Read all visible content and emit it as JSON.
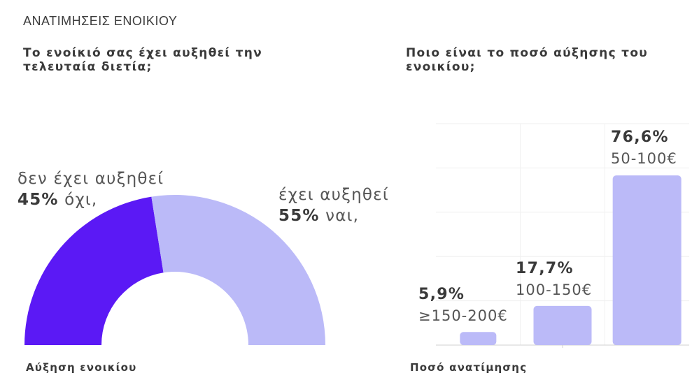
{
  "header": {
    "section_title": "ΑΝΑΤΙΜΗΣΕΙΣ ΕΝΟΙΚΙΟΥ"
  },
  "left_chart": {
    "title_line1": "Το ενοίκιό σας έχει αυξηθεί την",
    "title_line2": "τελευταία διετία;",
    "footer": "Αύξηση ενοικίου"
  },
  "right_chart": {
    "title_line1": "Ποιο είναι το ποσό αύξησης του",
    "title_line2": "ενοικίου;",
    "footer": "Ποσό ανατίμησης"
  },
  "chart_data": [
    {
      "type": "pie",
      "variant": "half-donut",
      "title": "Το ενοίκιό σας έχει αυξηθεί την τελευταία διετία;",
      "slices": [
        {
          "desc": "δεν έχει αυξηθεί",
          "pct_text": "45%",
          "label": "όχι,",
          "value": 45,
          "color": "#5b19f5"
        },
        {
          "desc": "έχει αυξηθεί",
          "pct_text": "55%",
          "label": "ναι,",
          "value": 55,
          "color": "#bbbaf8"
        }
      ],
      "xlabel": "Αύξηση ενοικίου"
    },
    {
      "type": "bar",
      "title": "Ποιο είναι το ποσό αύξησης του ενοικίου;",
      "categories": [
        "≥150-200€",
        "100-150€",
        "50-100€"
      ],
      "values": [
        5.9,
        17.7,
        76.6
      ],
      "value_labels": [
        "5,9%",
        "17,7%",
        "76,6%"
      ],
      "ylim": [
        0,
        100
      ],
      "grid": true,
      "color": "#bbbaf8",
      "xlabel": "Ποσό ανατίμησης"
    }
  ]
}
